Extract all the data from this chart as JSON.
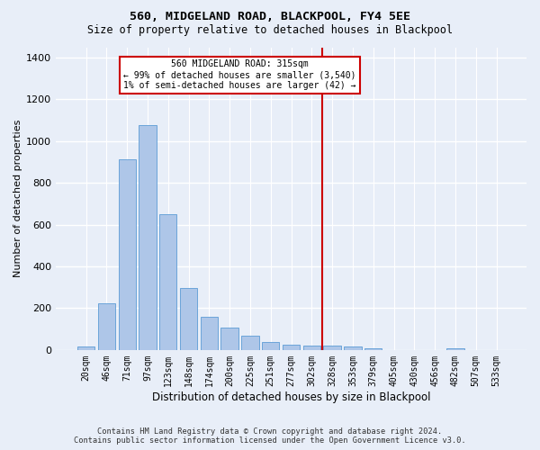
{
  "title": "560, MIDGELAND ROAD, BLACKPOOL, FY4 5EE",
  "subtitle": "Size of property relative to detached houses in Blackpool",
  "xlabel": "Distribution of detached houses by size in Blackpool",
  "ylabel": "Number of detached properties",
  "footer_line1": "Contains HM Land Registry data © Crown copyright and database right 2024.",
  "footer_line2": "Contains public sector information licensed under the Open Government Licence v3.0.",
  "categories": [
    "20sqm",
    "46sqm",
    "71sqm",
    "97sqm",
    "123sqm",
    "148sqm",
    "174sqm",
    "200sqm",
    "225sqm",
    "251sqm",
    "277sqm",
    "302sqm",
    "328sqm",
    "353sqm",
    "379sqm",
    "405sqm",
    "430sqm",
    "456sqm",
    "482sqm",
    "507sqm",
    "533sqm"
  ],
  "values": [
    18,
    225,
    915,
    1075,
    650,
    295,
    158,
    108,
    70,
    38,
    27,
    20,
    20,
    15,
    10,
    0,
    0,
    0,
    10,
    0,
    0
  ],
  "bar_color": "#aec6e8",
  "bar_edge_color": "#5b9bd5",
  "bg_color": "#e8eef8",
  "grid_color": "#ffffff",
  "vline_x": 11.5,
  "vline_color": "#cc0000",
  "annotation_title": "560 MIDGELAND ROAD: 315sqm",
  "annotation_line2": "← 99% of detached houses are smaller (3,540)",
  "annotation_line3": "1% of semi-detached houses are larger (42) →",
  "annotation_box_color": "#cc0000",
  "annotation_bg": "#ffffff",
  "ylim": [
    0,
    1450
  ],
  "yticks": [
    0,
    200,
    400,
    600,
    800,
    1000,
    1200,
    1400
  ]
}
